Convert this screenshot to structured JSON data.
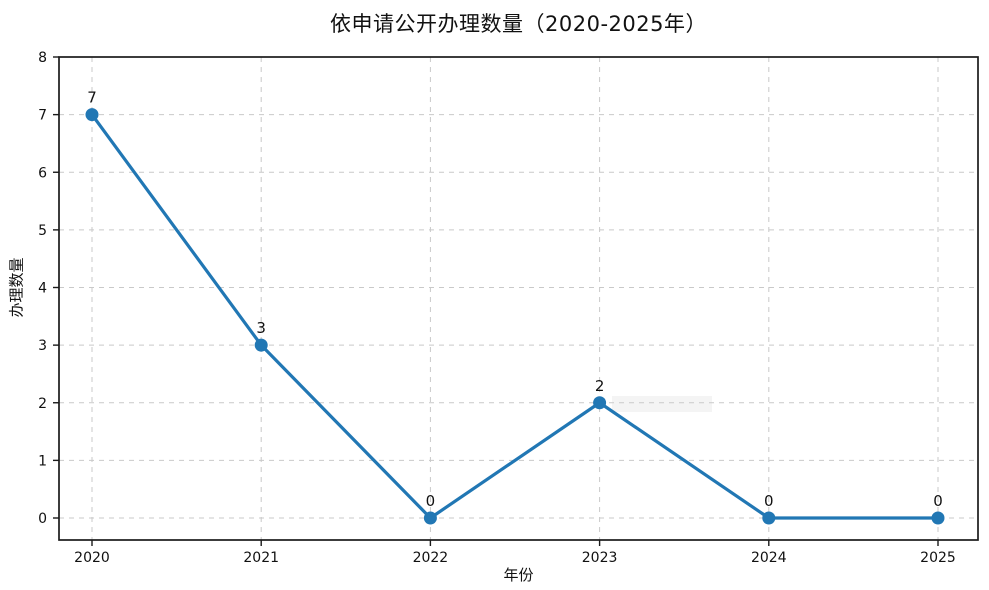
{
  "chart_data": {
    "type": "line",
    "title": "依申请公开办理数量（2020-2025年）",
    "xlabel": "年份",
    "ylabel": "办理数量",
    "categories": [
      "2020",
      "2021",
      "2022",
      "2023",
      "2024",
      "2025"
    ],
    "series": [
      {
        "name": "依申请公开办理数量",
        "values": [
          7,
          3,
          0,
          2,
          0,
          0
        ],
        "point_labels": [
          "7",
          "3",
          "0",
          "2",
          "0",
          "0"
        ]
      }
    ],
    "yticks": [
      0,
      1,
      2,
      3,
      4,
      5,
      6,
      7,
      8
    ],
    "ylim": [
      -0.4,
      8
    ],
    "grid": "on",
    "grid_style": "dashed",
    "legend_position": "none",
    "colors": {
      "line": "#2177b4",
      "marker": "#2177b4",
      "grid": "#c9c9c9",
      "axis": "#1a1a1a",
      "text": "#111111",
      "background": "#ffffff"
    }
  }
}
